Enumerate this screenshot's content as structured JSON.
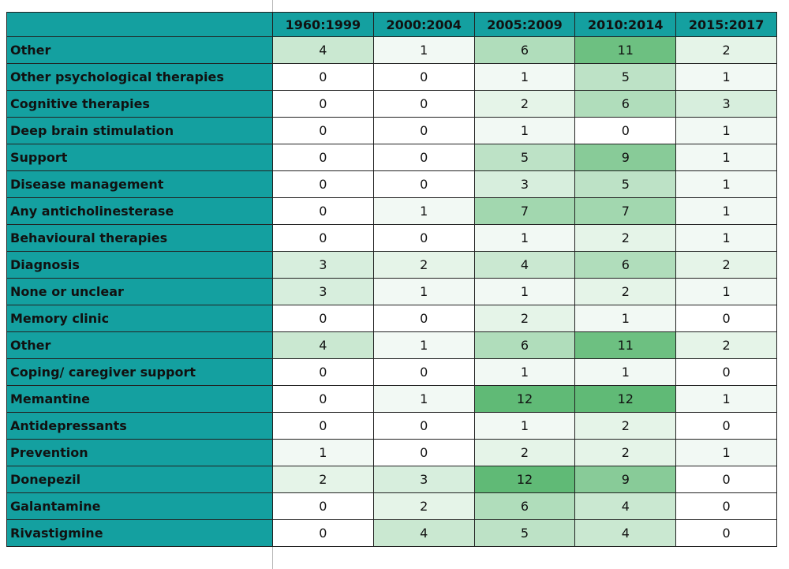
{
  "table": {
    "columns": [
      "1960:1999",
      "2000:2004",
      "2005:2009",
      "2010:2014",
      "2015:2017"
    ],
    "rows": [
      {
        "label": "Other",
        "values": [
          4,
          1,
          6,
          11,
          2
        ]
      },
      {
        "label": "Other psychological therapies",
        "values": [
          0,
          0,
          1,
          5,
          1
        ]
      },
      {
        "label": "Cognitive therapies",
        "values": [
          0,
          0,
          2,
          6,
          3
        ]
      },
      {
        "label": "Deep brain stimulation",
        "values": [
          0,
          0,
          1,
          0,
          1
        ]
      },
      {
        "label": "Support",
        "values": [
          0,
          0,
          5,
          9,
          1
        ]
      },
      {
        "label": "Disease management",
        "values": [
          0,
          0,
          3,
          5,
          1
        ]
      },
      {
        "label": "Any anticholinesterase",
        "values": [
          0,
          1,
          7,
          7,
          1
        ]
      },
      {
        "label": "Behavioural therapies",
        "values": [
          0,
          0,
          1,
          2,
          1
        ]
      },
      {
        "label": "Diagnosis",
        "values": [
          3,
          2,
          4,
          6,
          2
        ]
      },
      {
        "label": "None or unclear",
        "values": [
          3,
          1,
          1,
          2,
          1
        ]
      },
      {
        "label": "Memory clinic",
        "values": [
          0,
          0,
          2,
          1,
          0
        ]
      },
      {
        "label": "Other",
        "values": [
          4,
          1,
          6,
          11,
          2
        ]
      },
      {
        "label": "Coping/ caregiver support",
        "values": [
          0,
          0,
          1,
          1,
          0
        ]
      },
      {
        "label": "Memantine",
        "values": [
          0,
          1,
          12,
          12,
          1
        ]
      },
      {
        "label": "Antidepressants",
        "values": [
          0,
          0,
          1,
          2,
          0
        ]
      },
      {
        "label": "Prevention",
        "values": [
          1,
          0,
          2,
          2,
          1
        ]
      },
      {
        "label": "Donepezil",
        "values": [
          2,
          3,
          12,
          9,
          0
        ]
      },
      {
        "label": "Galantamine",
        "values": [
          0,
          2,
          6,
          4,
          0
        ]
      },
      {
        "label": "Rivastigmine",
        "values": [
          0,
          4,
          5,
          4,
          0
        ]
      }
    ]
  }
}
